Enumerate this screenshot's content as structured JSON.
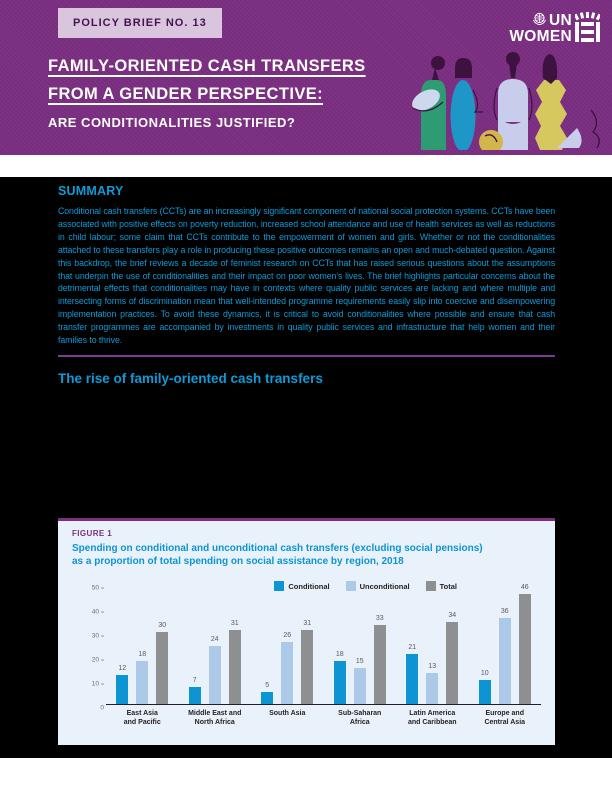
{
  "header": {
    "badge": "POLICY BRIEF NO. 13",
    "title_line1": "FAMILY-ORIENTED CASH TRANSFERS",
    "title_line2": "FROM A GENDER PERSPECTIVE:",
    "subtitle": "ARE CONDITIONALITIES JUSTIFIED?",
    "logo": {
      "top": "UN",
      "bottom": "WOMEN"
    }
  },
  "summary": {
    "heading": "SUMMARY",
    "body": "Conditional cash transfers (CCTs) are an increasingly significant component of national social protection systems. CCTs have been associated with positive effects on poverty reduction, increased school attendance and use of health services as well as reductions in child labour; some claim that CCTs contribute to the empowerment of women and girls. Whether or not the conditionalities attached to these transfers play a role in producing these positive outcomes remains an open and much-debated question. Against this backdrop, the brief reviews a decade of feminist research on CCTs that has raised serious questions about the assumptions that underpin the use of conditionalities and their impact on poor women’s lives. The brief highlights particular concerns about the detrimental effects that conditionalities may have in contexts where quality public services are lacking and where multiple and intersecting forms of discrimination mean that well-intended programme requirements easily slip into coercive and disempowering implementation practices. To avoid these dynamics, it is critical to avoid conditionalities where possible and ensure that cash transfer programmes are accompanied by investments in quality public services and infrastructure that help women and their families to thrive."
  },
  "section_heading": "The rise of family-oriented cash transfers",
  "figure": {
    "label": "FIGURE 1",
    "title_line1": "Spending on conditional and unconditional cash transfers (excluding social pensions)",
    "title_line2": "as a proportion of total spending on social assistance by region, 2018"
  },
  "chart_data": {
    "type": "bar",
    "categories": [
      "East Asia and Pacific",
      "Middle East and North Africa",
      "South Asia",
      "Sub-Saharan Africa",
      "Latin America and Caribbean",
      "Europe and Central Asia"
    ],
    "category_lines": [
      [
        "East Asia",
        "and Pacific"
      ],
      [
        "Middle East and",
        "North Africa"
      ],
      [
        "South Asia"
      ],
      [
        "Sub-Saharan",
        "Africa"
      ],
      [
        "Latin America",
        "and Caribbean"
      ],
      [
        "Europe and",
        "Central Asia"
      ]
    ],
    "series": [
      {
        "name": "Conditional",
        "color": "#0d94d2",
        "values": [
          12,
          7,
          5,
          18,
          21,
          10
        ]
      },
      {
        "name": "Unconditional",
        "color": "#adc9e8",
        "values": [
          18,
          24,
          26,
          15,
          13,
          36
        ]
      },
      {
        "name": "Total",
        "color": "#8e8f91",
        "values": [
          30,
          31,
          31,
          33,
          34,
          46
        ]
      }
    ],
    "ylim": [
      0,
      50
    ],
    "yticks": [
      0,
      10,
      20,
      30,
      40,
      50
    ],
    "xlabel": "",
    "ylabel": "",
    "legend_position": "top-right",
    "grid": false
  },
  "colors": {
    "header_purple": "#7b2e82",
    "badge_bg": "#d9c6de",
    "badge_text": "#41154a",
    "accent_cyan": "#0c9bd7",
    "divider_purple": "#7e3a94",
    "figure_purple": "#7c2e83",
    "figure_bg": "#e9f2fa",
    "content_bg": "#000000"
  }
}
